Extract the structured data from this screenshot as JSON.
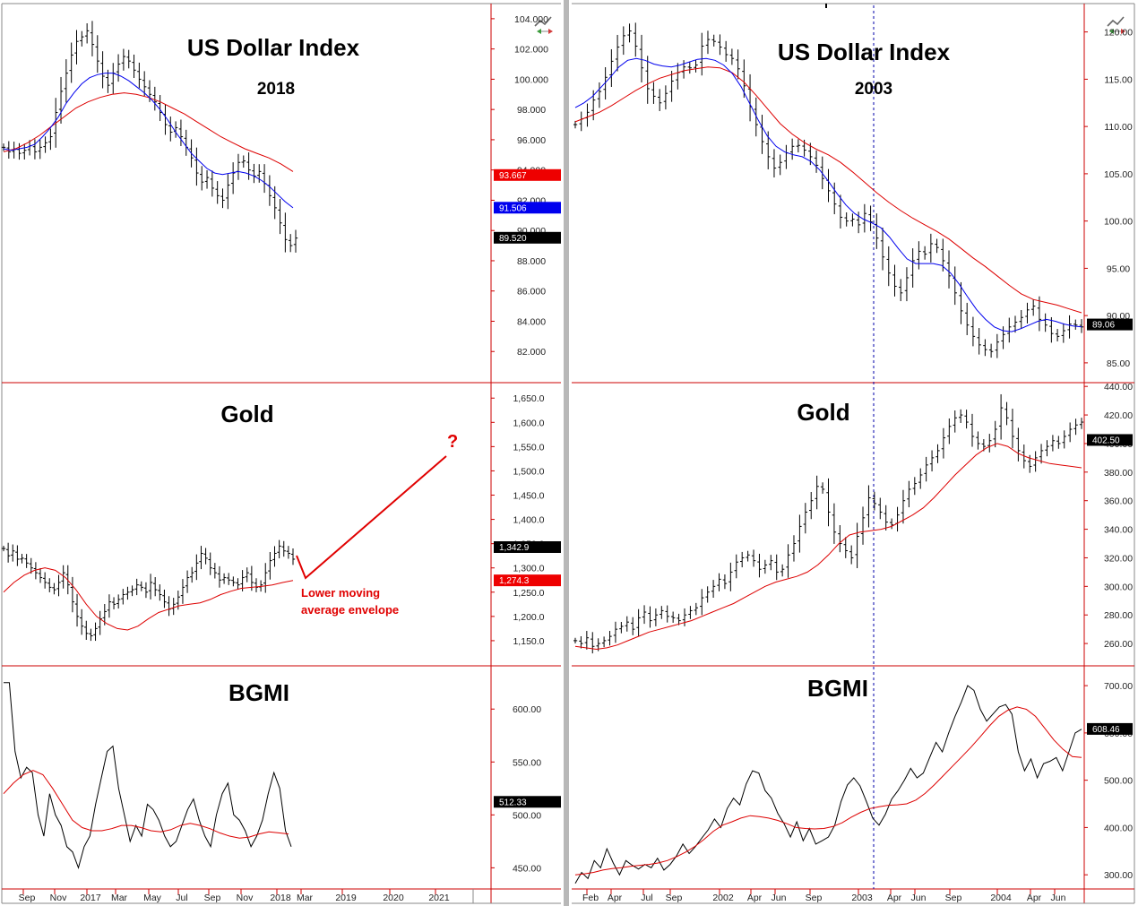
{
  "colors": {
    "price_bars": "#000000",
    "fast_ma": "#0000ee",
    "slow_ma": "#dd0000",
    "axis_line": "#cc0000",
    "annotation": "#e00000",
    "panel_divider": "#a0a0a0"
  },
  "icons": [
    "chart-settings-icon",
    "chart-settings-icon"
  ],
  "annotations": {
    "envelope_note_line1": "Lower moving",
    "envelope_note_line2": "average envelope",
    "question_mark": "?"
  },
  "chart_data": [
    {
      "type": "line",
      "title": "US Dollar Index",
      "subtitle": "2018",
      "series_style": "ohlc-bars",
      "ylim": [
        80,
        105
      ],
      "yticks": [
        "104.000",
        "102.000",
        "100.000",
        "98.000",
        "96.000",
        "94.000",
        "92.000",
        "90.000",
        "88.000",
        "86.000",
        "84.000",
        "82.000"
      ],
      "ytick_values": [
        104,
        102,
        100,
        98,
        96,
        94,
        92,
        90,
        88,
        86,
        84,
        82
      ],
      "value_badges": [
        {
          "label": "93.667",
          "value": 93.667,
          "color": "#ee0000"
        },
        {
          "label": "91.506",
          "value": 91.506,
          "color": "#0000ee"
        },
        {
          "label": "89.520",
          "value": 89.52,
          "color": "#000000"
        }
      ],
      "price_close": [
        95.5,
        95.2,
        95.4,
        95.1,
        95.3,
        95.6,
        95.2,
        95.5,
        95.8,
        96.2,
        97.8,
        99.2,
        100.4,
        101.6,
        102.5,
        102.8,
        103.2,
        102.3,
        101.2,
        100.2,
        99.6,
        100.4,
        101.0,
        101.5,
        101.2,
        100.6,
        100.0,
        99.5,
        99.0,
        98.5,
        97.8,
        97.0,
        96.5,
        96.8,
        96.2,
        95.5,
        94.8,
        93.8,
        93.2,
        93.5,
        92.8,
        92.3,
        92.0,
        93.0,
        93.8,
        94.5,
        94.6,
        94.0,
        93.6,
        93.9,
        93.1,
        92.3,
        91.5,
        90.5,
        89.4,
        89.0,
        89.5
      ],
      "fast_ma": [
        95.4,
        95.3,
        95.4,
        95.5,
        95.7,
        96.2,
        96.8,
        97.5,
        98.4,
        99.1,
        99.7,
        100.1,
        100.3,
        100.4,
        100.4,
        100.2,
        99.9,
        99.5,
        99.1,
        98.6,
        98.0,
        97.3,
        96.5,
        95.8,
        95.1,
        94.6,
        94.1,
        93.8,
        93.7,
        93.8,
        93.9,
        93.8,
        93.6,
        93.3,
        92.9,
        92.4,
        91.9,
        91.5
      ],
      "slow_ma": [
        95.2,
        95.4,
        95.8,
        96.3,
        96.9,
        97.5,
        98.1,
        98.5,
        98.8,
        99.0,
        99.1,
        99.0,
        98.8,
        98.5,
        98.1,
        97.7,
        97.2,
        96.7,
        96.2,
        95.8,
        95.4,
        95.1,
        94.8,
        94.4,
        93.9
      ]
    },
    {
      "type": "line",
      "title": "Gold",
      "series_style": "ohlc-bars",
      "ylim": [
        1100,
        1680
      ],
      "yticks": [
        "1,650.0",
        "1,600.0",
        "1,550.0",
        "1,500.0",
        "1,450.0",
        "1,400.0",
        "1,350.0",
        "1,300.0",
        "1,250.0",
        "1,200.0",
        "1,150.0"
      ],
      "ytick_values": [
        1650,
        1600,
        1550,
        1500,
        1450,
        1400,
        1350,
        1300,
        1250,
        1200,
        1150
      ],
      "value_badges": [
        {
          "label": "1,342.9",
          "value": 1342.9,
          "color": "#000000"
        },
        {
          "label": "1,274.3",
          "value": 1274.3,
          "color": "#ee0000"
        }
      ],
      "price_close": [
        1340,
        1325,
        1335,
        1318,
        1320,
        1310,
        1300,
        1290,
        1280,
        1270,
        1260,
        1255,
        1270,
        1290,
        1265,
        1230,
        1200,
        1180,
        1165,
        1160,
        1175,
        1195,
        1210,
        1230,
        1225,
        1235,
        1245,
        1250,
        1255,
        1265,
        1260,
        1250,
        1270,
        1255,
        1245,
        1230,
        1215,
        1225,
        1240,
        1260,
        1280,
        1290,
        1310,
        1330,
        1320,
        1300,
        1290,
        1275,
        1280,
        1275,
        1270,
        1265,
        1280,
        1290,
        1270,
        1260,
        1265,
        1290,
        1315,
        1330,
        1345,
        1335,
        1330,
        1318
      ],
      "slow_ma": [
        1250,
        1270,
        1285,
        1295,
        1300,
        1295,
        1280,
        1255,
        1225,
        1200,
        1185,
        1175,
        1172,
        1180,
        1195,
        1208,
        1215,
        1222,
        1225,
        1228,
        1235,
        1245,
        1252,
        1258,
        1260,
        1262,
        1265,
        1270,
        1274
      ],
      "projection": [
        1318,
        1545
      ]
    },
    {
      "type": "line",
      "title": "BGMI",
      "ylim": [
        430,
        640
      ],
      "yticks": [
        "600.00",
        "550.00",
        "500.00",
        "450.00"
      ],
      "ytick_values": [
        600,
        550,
        500,
        450
      ],
      "value_badges": [
        {
          "label": "512.33",
          "value": 512.33,
          "color": "#000000"
        }
      ],
      "values": [
        625,
        625,
        560,
        535,
        545,
        540,
        500,
        480,
        520,
        500,
        490,
        470,
        465,
        450,
        470,
        480,
        510,
        535,
        560,
        565,
        525,
        500,
        475,
        490,
        480,
        510,
        505,
        495,
        480,
        470,
        475,
        490,
        505,
        515,
        495,
        480,
        470,
        500,
        520,
        530,
        500,
        495,
        485,
        470,
        480,
        495,
        520,
        540,
        525,
        485,
        470
      ],
      "slow_ma": [
        520,
        530,
        538,
        542,
        538,
        525,
        510,
        495,
        488,
        485,
        485,
        487,
        490,
        490,
        488,
        485,
        484,
        486,
        490,
        492,
        490,
        487,
        483,
        480,
        478,
        479,
        482,
        484,
        483,
        482
      ]
    },
    {
      "type": "line",
      "title": "US Dollar Index",
      "subtitle": "2003",
      "series_style": "ohlc-bars",
      "ylim": [
        83,
        123
      ],
      "yticks": [
        "120.00",
        "115.00",
        "110.00",
        "105.00",
        "100.00",
        "95.00",
        "90.00",
        "85.00"
      ],
      "ytick_values": [
        120,
        115,
        110,
        105,
        100,
        95,
        90,
        85
      ],
      "value_badges": [
        {
          "label": "89.06",
          "value": 89.06,
          "color": "#000000"
        }
      ],
      "price_close": [
        110.2,
        110.8,
        111.5,
        112.8,
        113.7,
        115.2,
        116.9,
        118.4,
        119.6,
        120.1,
        118.5,
        116.2,
        114.0,
        113.2,
        112.5,
        113.5,
        114.8,
        115.7,
        116.3,
        116.2,
        116.5,
        118.5,
        119.2,
        119.0,
        118.4,
        117.6,
        117.2,
        116.1,
        114.3,
        112.1,
        110.2,
        108.4,
        106.8,
        105.6,
        106.2,
        107.2,
        107.9,
        108.0,
        107.5,
        106.8,
        105.9,
        104.5,
        103.2,
        101.8,
        100.4,
        100.0,
        100.2,
        99.6,
        100.8,
        99.9,
        98.2,
        96.2,
        94.5,
        93.1,
        92.4,
        94.0,
        95.8,
        96.8,
        96.5,
        97.6,
        97.2,
        95.8,
        94.2,
        92.4,
        90.5,
        89.0,
        87.8,
        86.9,
        86.4,
        86.2,
        87.2,
        88.0,
        88.8,
        89.3,
        89.8,
        90.6,
        91.0,
        89.6,
        89.0,
        88.1,
        87.8,
        88.4,
        89.1,
        89.0,
        88.8
      ],
      "fast_ma": [
        112.0,
        112.5,
        113.2,
        114.2,
        115.2,
        116.3,
        117.0,
        117.2,
        117.0,
        116.6,
        116.4,
        116.3,
        116.5,
        116.8,
        117.1,
        117.2,
        117.0,
        116.5,
        115.6,
        114.2,
        112.4,
        110.6,
        109.0,
        107.9,
        107.3,
        107.0,
        106.8,
        106.3,
        105.4,
        104.2,
        102.9,
        101.7,
        100.8,
        100.2,
        99.8,
        99.3,
        98.3,
        97.1,
        96.0,
        95.5,
        95.5,
        95.5,
        95.3,
        94.5,
        93.3,
        91.9,
        90.6,
        89.6,
        88.8,
        88.4,
        88.3,
        88.6,
        89.0,
        89.4,
        89.6,
        89.4,
        89.1,
        88.9,
        88.8
      ],
      "slow_ma": [
        110.5,
        111.0,
        111.5,
        112.2,
        113.0,
        113.8,
        114.5,
        115.1,
        115.5,
        115.9,
        116.1,
        116.3,
        116.2,
        115.7,
        114.7,
        113.3,
        111.8,
        110.3,
        109.2,
        108.3,
        107.6,
        107.0,
        106.2,
        105.2,
        104.1,
        103.0,
        102.0,
        101.1,
        100.3,
        99.6,
        98.9,
        98.1,
        97.1,
        96.1,
        95.2,
        94.2,
        93.2,
        92.3,
        91.7,
        91.4,
        91.1,
        90.7,
        90.3
      ]
    },
    {
      "type": "line",
      "title": "Gold",
      "series_style": "ohlc-bars",
      "ylim": [
        245,
        442
      ],
      "yticks": [
        "440.00",
        "420.00",
        "400.00",
        "380.00",
        "360.00",
        "340.00",
        "320.00",
        "300.00",
        "280.00",
        "260.00"
      ],
      "ytick_values": [
        440,
        420,
        400,
        380,
        360,
        340,
        320,
        300,
        280,
        260
      ],
      "value_badges": [
        {
          "label": "402.50",
          "value": 402.5,
          "color": "#000000"
        }
      ],
      "price_close": [
        262,
        260,
        264,
        258,
        260,
        262,
        265,
        270,
        272,
        275,
        270,
        278,
        282,
        276,
        280,
        283,
        279,
        278,
        276,
        280,
        283,
        285,
        292,
        296,
        300,
        305,
        302,
        310,
        317,
        320,
        322,
        318,
        312,
        315,
        318,
        310,
        312,
        322,
        330,
        342,
        352,
        360,
        370,
        368,
        352,
        338,
        330,
        325,
        320,
        335,
        348,
        362,
        358,
        352,
        345,
        343,
        350,
        360,
        368,
        372,
        378,
        385,
        390,
        395,
        404,
        412,
        418,
        420,
        415,
        405,
        400,
        398,
        402,
        410,
        425,
        418,
        405,
        395,
        388,
        384,
        390,
        395,
        398,
        402,
        400,
        405,
        410,
        413,
        415
      ],
      "slow_ma": [
        258,
        257,
        256,
        257,
        259,
        262,
        265,
        268,
        270,
        272,
        274,
        276,
        279,
        282,
        285,
        288,
        292,
        296,
        300,
        303,
        305,
        307,
        310,
        315,
        322,
        330,
        336,
        338,
        339,
        340,
        342,
        346,
        350,
        355,
        362,
        370,
        378,
        385,
        392,
        397,
        400,
        398,
        393,
        390,
        388,
        386,
        385,
        384,
        383
      ]
    },
    {
      "type": "line",
      "title": "BGMI",
      "ylim": [
        270,
        740
      ],
      "yticks": [
        "700.00",
        "600.00",
        "500.00",
        "400.00",
        "300.00"
      ],
      "ytick_values": [
        700,
        600,
        500,
        400,
        300
      ],
      "value_badges": [
        {
          "label": "608.46",
          "value": 608.46,
          "color": "#000000"
        }
      ],
      "values": [
        282,
        305,
        292,
        330,
        315,
        355,
        325,
        300,
        330,
        320,
        312,
        322,
        315,
        335,
        310,
        322,
        340,
        365,
        345,
        360,
        378,
        395,
        418,
        400,
        440,
        462,
        448,
        492,
        520,
        515,
        478,
        462,
        430,
        408,
        380,
        412,
        372,
        398,
        365,
        372,
        380,
        405,
        455,
        490,
        505,
        488,
        455,
        420,
        405,
        428,
        460,
        478,
        500,
        525,
        505,
        515,
        548,
        580,
        560,
        600,
        635,
        665,
        700,
        690,
        650,
        625,
        640,
        655,
        660,
        640,
        560,
        520,
        545,
        505,
        535,
        540,
        548,
        520,
        560,
        600,
        608
      ],
      "slow_ma": [
        300,
        302,
        305,
        310,
        313,
        315,
        318,
        320,
        322,
        325,
        330,
        338,
        348,
        360,
        375,
        392,
        405,
        412,
        420,
        425,
        423,
        420,
        415,
        408,
        400,
        398,
        397,
        398,
        402,
        410,
        422,
        432,
        440,
        444,
        447,
        448,
        450,
        458,
        472,
        490,
        510,
        530,
        550,
        570,
        592,
        615,
        635,
        648,
        655,
        650,
        635,
        610,
        585,
        565,
        550,
        548
      ]
    }
  ],
  "x_axis_left": [
    "Sep",
    "Nov",
    "2017",
    "Mar",
    "May",
    "Jul",
    "Sep",
    "Nov",
    "2018",
    "Mar",
    "2019",
    "2020",
    "2021"
  ],
  "x_axis_right": [
    "Feb",
    "Apr",
    "Jul",
    "Sep",
    "2002",
    "Apr",
    "Jun",
    "Sep",
    "2003",
    "Apr",
    "Jun",
    "Sep",
    "2004",
    "Apr",
    "Jun"
  ]
}
